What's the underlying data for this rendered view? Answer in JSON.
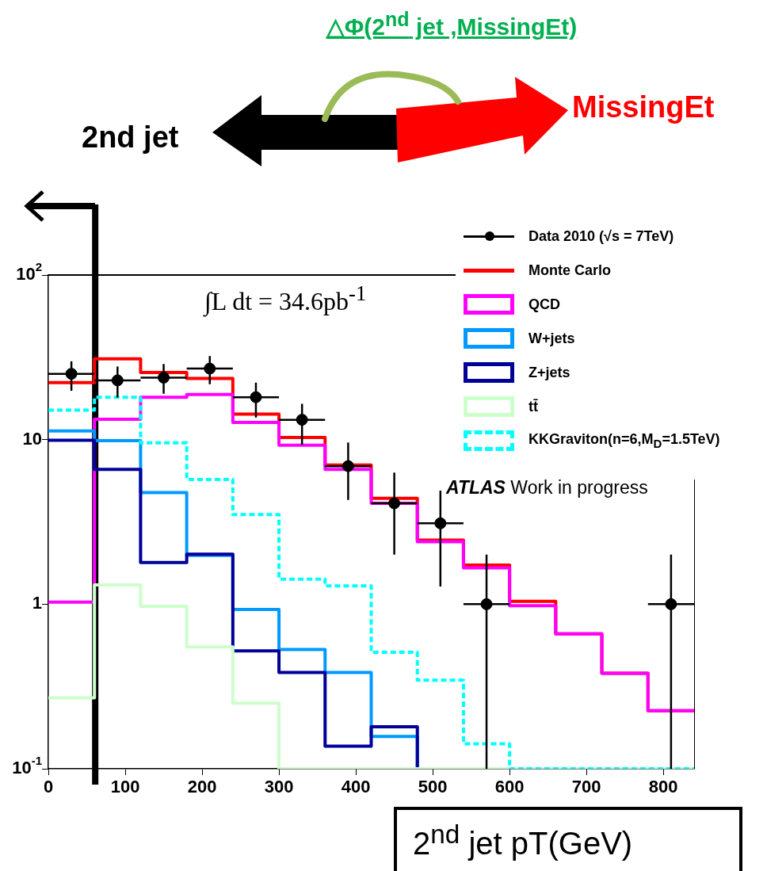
{
  "chart_data": {
    "type": "histogram",
    "title": "△Φ(2$^{nd}$ jet ,MissingEt)",
    "xlabel": "2$^{nd}$ jet pT(GeV)",
    "annotations": [
      "2nd jet",
      "MissingEt",
      "∫L dt = 34.6pb$^{-1}$",
      "ATLAS Work in progress"
    ],
    "bins": [
      0,
      60,
      120,
      180,
      240,
      300,
      360,
      420,
      480,
      540,
      600,
      660,
      720,
      780,
      840
    ],
    "series": [
      {
        "name": "Data 2010 (√s = 7TeV)",
        "type": "scatter",
        "color": "#000000",
        "marker": "circle",
        "x": [
          30,
          90,
          150,
          210,
          270,
          330,
          390,
          450,
          510,
          570,
          810
        ],
        "values": [
          25.1,
          22.9,
          23.8,
          27.0,
          18.1,
          13.2,
          6.9,
          4.1,
          3.1,
          1.0,
          1.0
        ],
        "errors": [
          [
            19.8,
            29.9
          ],
          [
            18.0,
            27.8
          ],
          [
            19.0,
            28.8
          ],
          [
            21.7,
            32.2
          ],
          [
            13.6,
            22.2
          ],
          [
            9.3,
            16.5
          ],
          [
            4.3,
            9.6
          ],
          [
            2.0,
            6.3
          ],
          [
            1.28,
            4.9
          ],
          [
            0.1,
            2.0
          ],
          [
            0.1,
            2.0
          ]
        ],
        "xerrors": [
          30,
          30,
          30,
          30,
          30,
          30,
          30,
          30,
          30,
          30,
          30
        ]
      },
      {
        "name": "Monte Carlo",
        "color": "#ff0000",
        "values": [
          22.2,
          31,
          25.6,
          23.5,
          14.3,
          10.3,
          7.0,
          4.4,
          2.45,
          1.73,
          1.04,
          0.66,
          0.38,
          0.225
        ]
      },
      {
        "name": "QCD",
        "color": "#ff00ff",
        "values": [
          1.03,
          13.3,
          18.1,
          18.8,
          12.7,
          9.25,
          6.6,
          4.1,
          2.4,
          1.66,
          0.98,
          0.66,
          0.38,
          0.225
        ]
      },
      {
        "name": "W+jets",
        "color": "#0099ff",
        "values": [
          11.3,
          9.86,
          4.76,
          1.98,
          0.93,
          0.53,
          0.385,
          0.157,
          0.1,
          0.1,
          0.1,
          0.1,
          0.1,
          0.1
        ]
      },
      {
        "name": "Z+jets",
        "color": "#000099",
        "values": [
          9.9,
          6.6,
          1.79,
          2.01,
          0.52,
          0.385,
          0.137,
          0.18,
          0.1,
          0.1,
          0.1,
          0.1,
          0.1,
          0.1
        ]
      },
      {
        "name": "tt̄",
        "color": "#ccffcc",
        "values": [
          0.27,
          1.31,
          0.97,
          0.55,
          0.25,
          0.1,
          0.1,
          0.1,
          0.1,
          0.1,
          0.1,
          0.1,
          0.1,
          0.1
        ]
      },
      {
        "name": "KKGraviton(n=6,M$_{D}$=1.5TeV)",
        "color": "#00ffff",
        "line_style": "dashed",
        "values": [
          15.1,
          18.1,
          9.57,
          5.73,
          3.5,
          1.42,
          1.29,
          0.51,
          0.345,
          0.142,
          0.1,
          0.1,
          0.1,
          0.1
        ]
      }
    ],
    "log": "y",
    "xlim": [
      0,
      840
    ],
    "xticks": [
      0,
      100,
      200,
      300,
      400,
      500,
      600,
      700,
      800
    ],
    "ylim": [
      0.1,
      100
    ],
    "yticks": [
      {
        "value": 0.1,
        "label": "10$^{-1}$"
      },
      1,
      10,
      {
        "value": 100,
        "label": "10$^{2}$"
      }
    ],
    "ref_lines": [
      {
        "axis": "x",
        "value": 61,
        "color": "#000000"
      }
    ],
    "grid": false,
    "legend": "top right"
  }
}
